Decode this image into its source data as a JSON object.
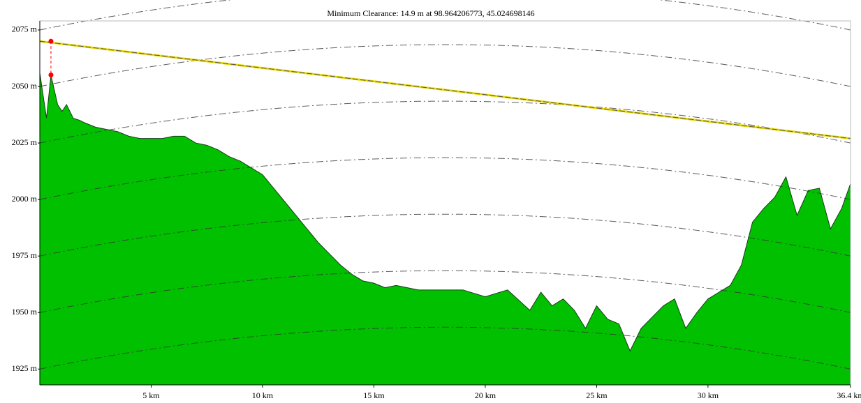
{
  "chart_data": {
    "type": "area",
    "title": "Minimum Clearance: 14.9 m at 98.964206773, 45.024698146",
    "xlim": [
      0,
      36.4
    ],
    "ylim": [
      1918,
      2079
    ],
    "xticks": [
      {
        "value": 5,
        "label": "5 km"
      },
      {
        "value": 10,
        "label": "10 km"
      },
      {
        "value": 15,
        "label": "15 km"
      },
      {
        "value": 20,
        "label": "20 km"
      },
      {
        "value": 25,
        "label": "25 km"
      },
      {
        "value": 30,
        "label": "30 km"
      },
      {
        "value": 36.4,
        "label": "36.4 km"
      }
    ],
    "yticks": [
      {
        "value": 1925,
        "label": "1925 m"
      },
      {
        "value": 1950,
        "label": "1950 m"
      },
      {
        "value": 1975,
        "label": "1975 m"
      },
      {
        "value": 2000,
        "label": "2000 m"
      },
      {
        "value": 2025,
        "label": "2025 m"
      },
      {
        "value": 2050,
        "label": "2050 m"
      },
      {
        "value": 2075,
        "label": "2075 m"
      }
    ],
    "series": [
      {
        "type": "area",
        "color": "#00c000",
        "x": [
          0,
          0.3,
          0.5,
          0.8,
          1.0,
          1.2,
          1.5,
          1.8,
          2.0,
          2.5,
          3.0,
          3.5,
          4.0,
          4.5,
          5.0,
          5.5,
          6.0,
          6.5,
          7.0,
          7.5,
          8.0,
          8.5,
          9.0,
          9.5,
          10.0,
          10.5,
          11.0,
          11.5,
          12.0,
          12.5,
          13.0,
          13.5,
          14.0,
          14.5,
          15.0,
          15.5,
          16.0,
          17.0,
          18.0,
          19.0,
          20.0,
          21.0,
          22.0,
          22.5,
          23.0,
          23.5,
          24.0,
          24.5,
          25.0,
          25.5,
          26.0,
          26.5,
          27.0,
          27.5,
          28.0,
          28.5,
          29.0,
          29.5,
          30.0,
          30.5,
          31.0,
          31.5,
          32.0,
          32.5,
          33.0,
          33.5,
          34.0,
          34.5,
          35.0,
          35.5,
          36.0,
          36.4
        ],
        "values": [
          2056,
          2036,
          2055,
          2042,
          2039,
          2042,
          2036,
          2035,
          2034,
          2032,
          2031,
          2030,
          2028,
          2027,
          2027,
          2027,
          2028,
          2028,
          2025,
          2024,
          2022,
          2019,
          2017,
          2014,
          2011,
          2005,
          1999,
          1993,
          1987,
          1981,
          1976,
          1971,
          1967,
          1964,
          1963,
          1961,
          1962,
          1960,
          1960,
          1960,
          1957,
          1960,
          1951,
          1959,
          1953,
          1956,
          1951,
          1943,
          1953,
          1947,
          1945,
          1933,
          1943,
          1948,
          1953,
          1956,
          1943,
          1950,
          1956,
          1959,
          1962,
          1971,
          1990,
          1996,
          2001,
          2010,
          1993,
          2004,
          2005,
          1987,
          1996,
          2007
        ]
      },
      {
        "type": "line",
        "color": "#e8d800",
        "x": [
          0,
          36.4
        ],
        "values": [
          2070,
          2027
        ]
      }
    ],
    "clearance_marker": {
      "color": "#ff0000",
      "x": 0.5,
      "values": [
        2070,
        2055.1
      ]
    }
  }
}
